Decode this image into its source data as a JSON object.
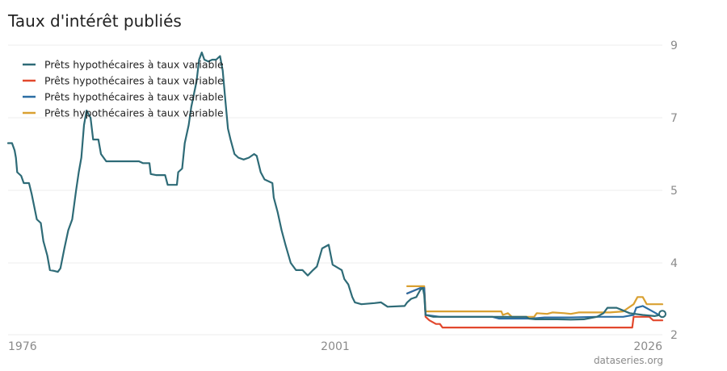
{
  "header": {
    "title": "Taux d'intérêt publiés"
  },
  "footer": {
    "source": "dataseries.org"
  },
  "chart_data": {
    "type": "line",
    "title": "Taux d'intérêt publiés",
    "xlabel": "",
    "ylabel": "",
    "x_ticks": [
      "1976",
      "2001",
      "2026"
    ],
    "y_ticks": [
      2,
      4,
      5,
      7,
      9
    ],
    "xlim": [
      1976,
      2026
    ],
    "ylim": [
      2,
      9
    ],
    "grid": true,
    "legend_position": "top-left",
    "series": [
      {
        "name": "Prêts hypothécaires à taux variable",
        "color": "#2e6b77",
        "points": [
          [
            1976.0,
            6.3
          ],
          [
            1976.3,
            6.3
          ],
          [
            1976.5,
            6.1
          ],
          [
            1976.6,
            5.9
          ],
          [
            1976.7,
            5.5
          ],
          [
            1977.0,
            5.4
          ],
          [
            1977.2,
            5.2
          ],
          [
            1977.6,
            5.2
          ],
          [
            1977.8,
            4.95
          ],
          [
            1978.2,
            4.6
          ],
          [
            1978.5,
            4.55
          ],
          [
            1978.7,
            4.3
          ],
          [
            1979.0,
            4.1
          ],
          [
            1979.2,
            3.8
          ],
          [
            1979.5,
            3.78
          ],
          [
            1979.8,
            3.75
          ],
          [
            1980.0,
            3.85
          ],
          [
            1980.3,
            4.2
          ],
          [
            1980.6,
            4.45
          ],
          [
            1980.9,
            4.6
          ],
          [
            1981.2,
            5.0
          ],
          [
            1981.4,
            5.5
          ],
          [
            1981.6,
            5.9
          ],
          [
            1981.8,
            6.8
          ],
          [
            1982.0,
            7.2
          ],
          [
            1982.3,
            7.0
          ],
          [
            1982.5,
            6.4
          ],
          [
            1982.9,
            6.4
          ],
          [
            1983.1,
            6.0
          ],
          [
            1983.5,
            5.8
          ],
          [
            1985.0,
            5.8
          ],
          [
            1986.0,
            5.8
          ],
          [
            1986.3,
            5.75
          ],
          [
            1986.8,
            5.75
          ],
          [
            1986.9,
            5.45
          ],
          [
            1987.3,
            5.42
          ],
          [
            1988.0,
            5.42
          ],
          [
            1988.2,
            5.15
          ],
          [
            1988.9,
            5.15
          ],
          [
            1989.0,
            5.5
          ],
          [
            1989.3,
            5.6
          ],
          [
            1989.5,
            6.3
          ],
          [
            1989.8,
            6.8
          ],
          [
            1990.0,
            7.3
          ],
          [
            1990.4,
            8.0
          ],
          [
            1990.6,
            8.6
          ],
          [
            1990.8,
            8.8
          ],
          [
            1991.0,
            8.6
          ],
          [
            1991.3,
            8.55
          ],
          [
            1991.6,
            8.6
          ],
          [
            1991.9,
            8.6
          ],
          [
            1992.2,
            8.7
          ],
          [
            1992.4,
            8.3
          ],
          [
            1992.6,
            7.5
          ],
          [
            1992.8,
            6.7
          ],
          [
            1993.0,
            6.4
          ],
          [
            1993.3,
            6.0
          ],
          [
            1993.6,
            5.9
          ],
          [
            1994.0,
            5.85
          ],
          [
            1994.4,
            5.9
          ],
          [
            1994.8,
            6.0
          ],
          [
            1995.0,
            5.95
          ],
          [
            1995.3,
            5.5
          ],
          [
            1995.6,
            5.3
          ],
          [
            1996.2,
            5.2
          ],
          [
            1996.3,
            4.9
          ],
          [
            1996.6,
            4.7
          ],
          [
            1996.9,
            4.45
          ],
          [
            1997.2,
            4.25
          ],
          [
            1997.6,
            4.0
          ],
          [
            1998.0,
            3.8
          ],
          [
            1998.5,
            3.8
          ],
          [
            1998.9,
            3.65
          ],
          [
            1999.3,
            3.8
          ],
          [
            1999.6,
            3.9
          ],
          [
            2000.0,
            4.2
          ],
          [
            2000.5,
            4.25
          ],
          [
            2000.8,
            3.95
          ],
          [
            2001.5,
            3.8
          ],
          [
            2001.7,
            3.55
          ],
          [
            2002.0,
            3.4
          ],
          [
            2002.3,
            3.05
          ],
          [
            2002.5,
            2.9
          ],
          [
            2003.0,
            2.85
          ],
          [
            2004.0,
            2.88
          ],
          [
            2004.5,
            2.9
          ],
          [
            2005.0,
            2.78
          ],
          [
            2006.3,
            2.8
          ],
          [
            2006.5,
            2.9
          ],
          [
            2006.8,
            3.0
          ],
          [
            2007.2,
            3.05
          ],
          [
            2007.5,
            3.25
          ],
          [
            2007.7,
            3.3
          ],
          [
            2007.8,
            3.1
          ],
          [
            2007.9,
            2.55
          ],
          [
            2008.5,
            2.5
          ],
          [
            2010.0,
            2.5
          ],
          [
            2012.0,
            2.5
          ],
          [
            2014.0,
            2.5
          ],
          [
            2015.6,
            2.5
          ],
          [
            2015.8,
            2.45
          ],
          [
            2016.3,
            2.43
          ],
          [
            2018.0,
            2.43
          ],
          [
            2019.0,
            2.42
          ],
          [
            2020.0,
            2.43
          ],
          [
            2021.0,
            2.5
          ],
          [
            2021.5,
            2.6
          ],
          [
            2021.8,
            2.75
          ],
          [
            2022.5,
            2.75
          ],
          [
            2023.5,
            2.6
          ],
          [
            2024.5,
            2.55
          ],
          [
            2025.4,
            2.52
          ],
          [
            2025.8,
            2.55
          ],
          [
            2026.0,
            2.58
          ]
        ]
      },
      {
        "name": "Prêts hypothécaires à taux variable",
        "color": "#e2482d",
        "points": [
          [
            2006.5,
            3.15
          ],
          [
            2007.5,
            3.3
          ],
          [
            2007.8,
            3.3
          ],
          [
            2007.9,
            2.5
          ],
          [
            2008.2,
            2.4
          ],
          [
            2008.7,
            2.3
          ],
          [
            2009.0,
            2.3
          ],
          [
            2009.2,
            2.2
          ],
          [
            2012.0,
            2.2
          ],
          [
            2016.0,
            2.2
          ],
          [
            2020.0,
            2.2
          ],
          [
            2023.7,
            2.2
          ],
          [
            2023.8,
            2.5
          ],
          [
            2025.0,
            2.5
          ],
          [
            2025.3,
            2.4
          ],
          [
            2026.0,
            2.4
          ]
        ]
      },
      {
        "name": "Prêts hypothécaires à taux variable",
        "color": "#2c6ea4",
        "points": [
          [
            2006.5,
            3.15
          ],
          [
            2007.5,
            3.3
          ],
          [
            2007.8,
            3.3
          ],
          [
            2007.9,
            2.55
          ],
          [
            2009.0,
            2.5
          ],
          [
            2010.0,
            2.5
          ],
          [
            2012.0,
            2.5
          ],
          [
            2013.0,
            2.5
          ],
          [
            2013.5,
            2.45
          ],
          [
            2015.0,
            2.45
          ],
          [
            2016.0,
            2.45
          ],
          [
            2017.0,
            2.48
          ],
          [
            2019.0,
            2.48
          ],
          [
            2021.0,
            2.5
          ],
          [
            2022.0,
            2.5
          ],
          [
            2023.0,
            2.5
          ],
          [
            2023.8,
            2.55
          ],
          [
            2024.0,
            2.75
          ],
          [
            2024.5,
            2.8
          ],
          [
            2025.0,
            2.7
          ],
          [
            2026.0,
            2.5
          ]
        ]
      },
      {
        "name": "Prêts hypothécaires à taux variable",
        "color": "#d9a031",
        "points": [
          [
            2006.5,
            3.35
          ],
          [
            2007.8,
            3.35
          ],
          [
            2007.9,
            2.65
          ],
          [
            2010.0,
            2.65
          ],
          [
            2012.0,
            2.65
          ],
          [
            2013.7,
            2.65
          ],
          [
            2013.8,
            2.55
          ],
          [
            2014.2,
            2.6
          ],
          [
            2014.5,
            2.5
          ],
          [
            2016.2,
            2.5
          ],
          [
            2016.4,
            2.6
          ],
          [
            2017.2,
            2.58
          ],
          [
            2017.6,
            2.62
          ],
          [
            2018.5,
            2.6
          ],
          [
            2019.0,
            2.58
          ],
          [
            2019.6,
            2.62
          ],
          [
            2021.0,
            2.62
          ],
          [
            2022.0,
            2.62
          ],
          [
            2023.0,
            2.65
          ],
          [
            2023.8,
            2.85
          ],
          [
            2024.1,
            3.05
          ],
          [
            2024.5,
            3.05
          ],
          [
            2024.8,
            2.85
          ],
          [
            2026.0,
            2.85
          ]
        ]
      }
    ]
  }
}
